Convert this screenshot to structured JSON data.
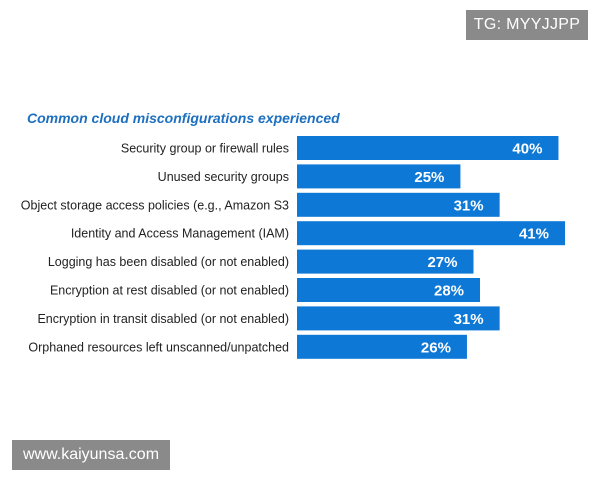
{
  "watermarks": {
    "top": "TG: MYYJJPP",
    "bottom": "www.kaiyunsa.com"
  },
  "chart_data": {
    "type": "bar",
    "orientation": "horizontal",
    "title": "Common cloud misconfigurations experienced",
    "bar_color": "#0e78d6",
    "categories": [
      "Security group or firewall rules",
      "Unused security groups",
      "Object storage access policies (e.g., Amazon S3",
      "Identity and Access Management (IAM)",
      "Logging has been disabled (or not enabled)",
      "Encryption at rest disabled (or not enabled)",
      "Encryption in transit disabled (or not enabled)",
      "Orphaned resources left unscanned/unpatched"
    ],
    "values": [
      40,
      25,
      31,
      41,
      27,
      28,
      31,
      26
    ],
    "value_labels": [
      "40%",
      "25%",
      "31%",
      "41%",
      "27%",
      "28%",
      "31%",
      "26%"
    ],
    "unit": "%",
    "xlim": [
      0,
      41
    ],
    "grid": false,
    "legend": "none"
  }
}
